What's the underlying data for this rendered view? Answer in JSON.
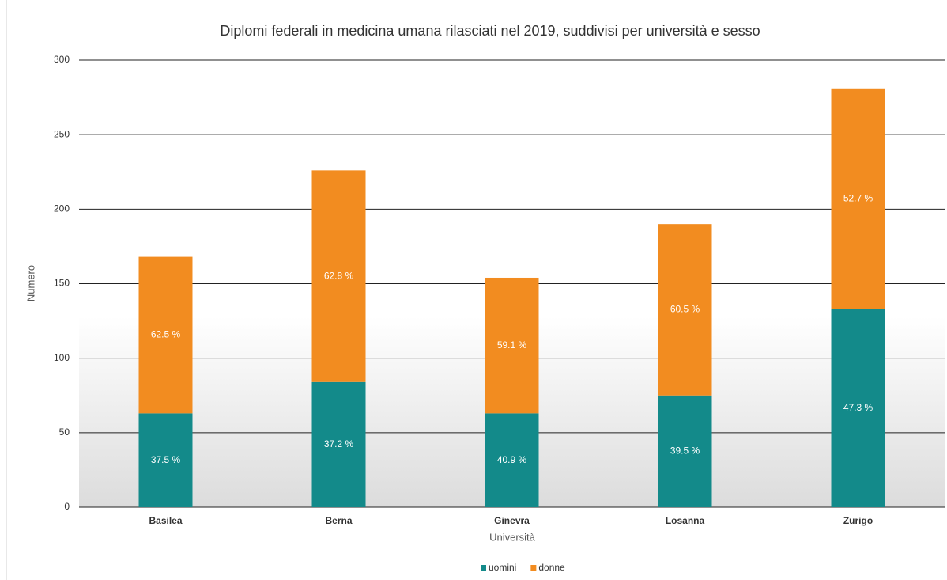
{
  "chart_data": {
    "type": "stacked_bar",
    "title": "Diplomi federali in medicina umana rilasciati nel 2019, suddivisi per università e sesso",
    "xlabel": "Università",
    "ylabel": "Numero",
    "categories": [
      "Basilea",
      "Berna",
      "Ginevra",
      "Losanna",
      "Zurigo"
    ],
    "series": [
      {
        "name": "uomini",
        "color": "#138a8a",
        "values": [
          63,
          84,
          63,
          75,
          133
        ],
        "data_labels": [
          "37.5 %",
          "37.2 %",
          "40.9 %",
          "39.5 %",
          "47.3 %"
        ]
      },
      {
        "name": "donne",
        "color": "#f28c20",
        "values": [
          105,
          142,
          91,
          115,
          148
        ],
        "data_labels": [
          "62.5 %",
          "62.8 %",
          "59.1 %",
          "60.5 %",
          "52.7 %"
        ]
      }
    ],
    "ylim": [
      0,
      300
    ],
    "yticks": [
      0,
      50,
      100,
      150,
      200,
      250,
      300
    ],
    "grid": true,
    "legend": "bottom"
  }
}
